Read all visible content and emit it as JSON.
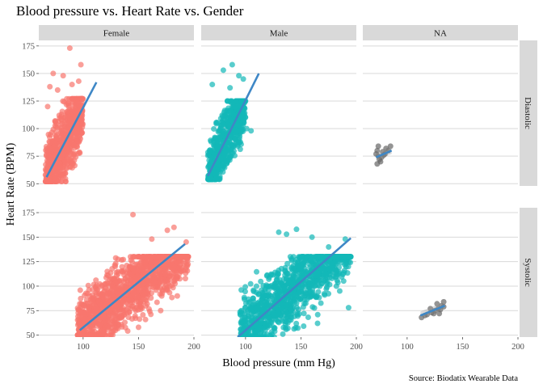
{
  "chart_data": {
    "type": "scatter",
    "title": "Blood pressure vs. Heart Rate vs. Gender",
    "xlabel": "Blood pressure (mm Hg)",
    "ylabel": "Heart Rate (BPM)",
    "caption": "Source: Biodatix Wearable Data",
    "xlim": [
      60,
      200
    ],
    "ylim": [
      48,
      180
    ],
    "x_ticks": [
      100,
      150,
      200
    ],
    "y_ticks": [
      50,
      75,
      100,
      125,
      150,
      175
    ],
    "grid": "on",
    "column_facets": [
      "Female",
      "Male",
      "NA"
    ],
    "row_facets": [
      "Diastolic",
      "Systolic"
    ],
    "smooth_color": "#3e87c6",
    "series_colors": {
      "Female": "#f8766d",
      "Male": "#12b8b8",
      "NA": "#666666"
    },
    "panels": [
      {
        "gender": "Female",
        "measure": "Diastolic",
        "color": "#f8766d",
        "cluster": {
          "x": [
            66,
            100
          ],
          "y": [
            52,
            127
          ],
          "center": [
            84,
            88
          ],
          "n": 700
        },
        "points": [
          [
            88,
            173
          ],
          [
            98,
            158
          ],
          [
            73,
            150
          ],
          [
            82,
            148
          ],
          [
            96,
            143
          ],
          [
            70,
            138
          ],
          [
            90,
            140
          ],
          [
            77,
            135
          ],
          [
            99,
            127
          ],
          [
            68,
            120
          ],
          [
            66,
            58
          ],
          [
            75,
            55
          ]
        ],
        "fit": {
          "x": [
            67,
            112
          ],
          "y": [
            56,
            142
          ]
        }
      },
      {
        "gender": "Male",
        "measure": "Diastolic",
        "color": "#12b8b8",
        "cluster": {
          "x": [
            66,
            100
          ],
          "y": [
            54,
            125
          ],
          "center": [
            83,
            87
          ],
          "n": 600
        },
        "points": [
          [
            88,
            158
          ],
          [
            80,
            153
          ],
          [
            94,
            148
          ],
          [
            98,
            145
          ],
          [
            70,
            140
          ],
          [
            86,
            137
          ],
          [
            101,
            100
          ],
          [
            105,
            98
          ],
          [
            68,
            58
          ],
          [
            74,
            55
          ]
        ],
        "fit": {
          "x": [
            66,
            112
          ],
          "y": [
            57,
            150
          ]
        }
      },
      {
        "gender": "NA",
        "measure": "Diastolic",
        "color": "#666666",
        "cluster": null,
        "points": [
          [
            74,
            84
          ],
          [
            73,
            80
          ],
          [
            72,
            77
          ],
          [
            74,
            75
          ],
          [
            77,
            74
          ],
          [
            76,
            70
          ],
          [
            73,
            68
          ],
          [
            78,
            79
          ],
          [
            80,
            77
          ],
          [
            83,
            80
          ],
          [
            85,
            84
          ],
          [
            81,
            82
          ],
          [
            75,
            72
          ],
          [
            79,
            76
          ]
        ],
        "fit": {
          "x": [
            72,
            86
          ],
          "y": [
            74,
            80
          ]
        }
      },
      {
        "gender": "Female",
        "measure": "Systolic",
        "color": "#f8766d",
        "cluster": {
          "x": [
            95,
            195
          ],
          "y": [
            50,
            130
          ],
          "center": [
            140,
            92
          ],
          "n": 1400
        },
        "points": [
          [
            145,
            173
          ],
          [
            182,
            160
          ],
          [
            176,
            157
          ],
          [
            193,
            145
          ],
          [
            162,
            148
          ],
          [
            100,
            55
          ],
          [
            115,
            60
          ],
          [
            150,
            58
          ],
          [
            185,
            90
          ],
          [
            170,
            75
          ]
        ],
        "fit": {
          "x": [
            97,
            192
          ],
          "y": [
            55,
            143
          ]
        }
      },
      {
        "gender": "Male",
        "measure": "Systolic",
        "color": "#12b8b8",
        "cluster": {
          "x": [
            95,
            195
          ],
          "y": [
            48,
            130
          ],
          "center": [
            145,
            92
          ],
          "n": 1200
        },
        "points": [
          [
            146,
            158
          ],
          [
            137,
            153
          ],
          [
            160,
            150
          ],
          [
            130,
            155
          ],
          [
            190,
            148
          ],
          [
            175,
            140
          ],
          [
            96,
            52
          ],
          [
            120,
            58
          ],
          [
            165,
            62
          ],
          [
            185,
            95
          ],
          [
            193,
            78
          ]
        ],
        "fit": {
          "x": [
            93,
            195
          ],
          "y": [
            48,
            149
          ]
        }
      },
      {
        "gender": "NA",
        "measure": "Systolic",
        "color": "#666666",
        "cluster": null,
        "points": [
          [
            113,
            68
          ],
          [
            118,
            71
          ],
          [
            122,
            73
          ],
          [
            125,
            75
          ],
          [
            128,
            77
          ],
          [
            131,
            80
          ],
          [
            133,
            84
          ],
          [
            127,
            82
          ],
          [
            130,
            76
          ],
          [
            121,
            77
          ],
          [
            124,
            72
          ],
          [
            116,
            70
          ],
          [
            129,
            72
          ],
          [
            133,
            79
          ]
        ],
        "fit": {
          "x": [
            112,
            134
          ],
          "y": [
            70,
            80
          ]
        }
      }
    ]
  }
}
